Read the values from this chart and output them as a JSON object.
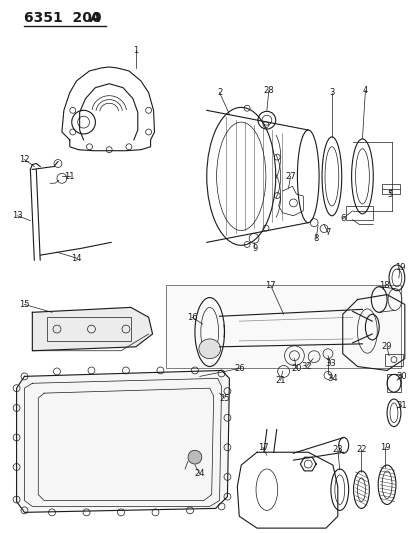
{
  "title1": "6351  200",
  "title2": "A",
  "bg_color": "#ffffff",
  "line_color": "#1a1a1a",
  "title_fontsize": 10,
  "figsize": [
    4.1,
    5.33
  ],
  "dpi": 100
}
